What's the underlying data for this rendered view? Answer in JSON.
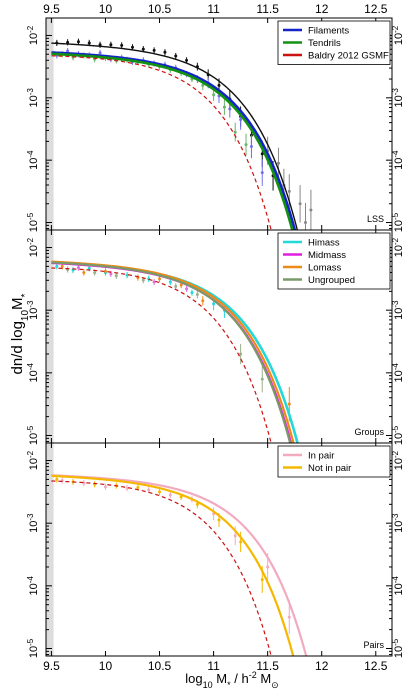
{
  "figure": {
    "ylabel": "dn/d log",
    "ylabel_sub": "10",
    "ylabel_tail": "M",
    "ylabel_star": "*",
    "xlabel_a": "log",
    "xlabel_sub": "10",
    "xlabel_b": " M",
    "xlabel_star": "*",
    "xlabel_c": " / h",
    "xlabel_sup": "-2",
    "xlabel_d": "  M",
    "xlabel_sun": "⊙"
  },
  "chart_data": [
    {
      "type": "line",
      "panel_label": "LSS",
      "xlim": [
        9.45,
        12.65
      ],
      "ylim_log10": [
        -5.12,
        -1.72
      ],
      "yscale": "log",
      "xticks": [
        9.5,
        10,
        10.5,
        11,
        11.5,
        12,
        12.5
      ],
      "xticklabels": [
        "9.5",
        "10",
        "10.5",
        "11",
        "11.5",
        "12",
        "12.5"
      ],
      "yticks_log10": [
        -5,
        -4,
        -3,
        -2
      ],
      "legend_position": "top-right",
      "shaded_x": [
        9.45,
        9.52
      ],
      "series": [
        {
          "name": "Filaments",
          "color": "#1424c8",
          "style": "solid",
          "width": 2.6,
          "phi_star_log10": -2.33,
          "m_star": 10.95,
          "alpha": -1.05
        },
        {
          "name": "Tendrils",
          "color": "#129012",
          "style": "solid",
          "width": 2.6,
          "phi_star_log10": -2.35,
          "m_star": 10.93,
          "alpha": -1.05
        },
        {
          "name": "Baldry 2012 GSMF",
          "color": "#cc1111",
          "style": "dashed",
          "width": 1.2,
          "phi_star_log10": -2.3,
          "m_star": 10.72,
          "alpha": -1.0
        },
        {
          "name": "",
          "color": "#111111",
          "style": "solid",
          "width": 1.4,
          "phi_star_log10": -2.18,
          "m_star": 10.95,
          "alpha": -1.05
        }
      ],
      "points": [
        {
          "color": "#111111",
          "pts": [
            [
              9.55,
              -2.12
            ],
            [
              9.65,
              -2.11
            ],
            [
              9.75,
              -2.1
            ],
            [
              9.85,
              -2.12
            ],
            [
              9.95,
              -2.15
            ],
            [
              10.05,
              -2.15
            ],
            [
              10.15,
              -2.16
            ],
            [
              10.25,
              -2.19
            ],
            [
              10.35,
              -2.22
            ],
            [
              10.45,
              -2.24
            ],
            [
              10.55,
              -2.27
            ],
            [
              10.65,
              -2.33
            ],
            [
              10.75,
              -2.4
            ],
            [
              10.85,
              -2.5
            ],
            [
              10.95,
              -2.63
            ],
            [
              11.05,
              -2.8
            ],
            [
              11.15,
              -3.02
            ],
            [
              11.25,
              -3.3
            ],
            [
              11.35,
              -3.6
            ],
            [
              11.45,
              -3.9
            ],
            [
              11.55,
              -4.25
            ]
          ]
        },
        {
          "color": "#7070ee",
          "pts": [
            [
              9.55,
              -2.32
            ],
            [
              9.65,
              -2.25
            ],
            [
              9.75,
              -2.3
            ],
            [
              9.85,
              -2.32
            ],
            [
              9.95,
              -2.28
            ],
            [
              10.05,
              -2.38
            ],
            [
              10.15,
              -2.36
            ],
            [
              10.25,
              -2.42
            ],
            [
              10.35,
              -2.4
            ],
            [
              10.45,
              -2.45
            ],
            [
              10.55,
              -2.47
            ],
            [
              10.65,
              -2.52
            ],
            [
              10.75,
              -2.62
            ],
            [
              10.85,
              -2.7
            ],
            [
              10.95,
              -2.76
            ],
            [
              11.05,
              -2.97
            ],
            [
              11.15,
              -3.18
            ],
            [
              11.25,
              -3.35
            ],
            [
              11.35,
              -3.78
            ],
            [
              11.45,
              -4.2
            ]
          ]
        },
        {
          "color": "#6ab46a",
          "pts": [
            [
              9.6,
              -2.3
            ],
            [
              9.7,
              -2.35
            ],
            [
              9.8,
              -2.32
            ],
            [
              9.9,
              -2.38
            ],
            [
              10.0,
              -2.36
            ],
            [
              10.1,
              -2.4
            ],
            [
              10.2,
              -2.39
            ],
            [
              10.3,
              -2.43
            ],
            [
              10.4,
              -2.46
            ],
            [
              10.5,
              -2.5
            ],
            [
              10.6,
              -2.55
            ],
            [
              10.7,
              -2.6
            ],
            [
              10.8,
              -2.7
            ],
            [
              10.9,
              -2.8
            ],
            [
              11.0,
              -2.95
            ],
            [
              11.1,
              -3.15
            ],
            [
              11.2,
              -3.55
            ],
            [
              11.3,
              -3.75
            ]
          ]
        },
        {
          "color": "#888888",
          "pts": [
            [
              11.5,
              -3.85
            ],
            [
              11.6,
              -4.05
            ],
            [
              11.65,
              -4.4
            ],
            [
              11.7,
              -4.5
            ],
            [
              11.8,
              -4.7
            ],
            [
              11.85,
              -5.0
            ],
            [
              11.9,
              -4.8
            ]
          ]
        }
      ]
    },
    {
      "type": "line",
      "panel_label": "Groups",
      "xlim": [
        9.45,
        12.65
      ],
      "ylim_log10": [
        -5.12,
        -1.72
      ],
      "yscale": "log",
      "xticks": [
        9.5,
        10,
        10.5,
        11,
        11.5,
        12,
        12.5
      ],
      "yticks_log10": [
        -5,
        -4,
        -3,
        -2
      ],
      "legend_position": "top-right",
      "shaded_x": [
        9.45,
        9.52
      ],
      "series": [
        {
          "name": "Himass",
          "color": "#22d8d8",
          "style": "solid",
          "width": 2.6,
          "phi_star_log10": -2.3,
          "m_star": 10.97,
          "alpha": -1.05
        },
        {
          "name": "Midmass",
          "color": "#e020e0",
          "style": "solid",
          "width": 2.2,
          "phi_star_log10": -2.3,
          "m_star": 10.91,
          "alpha": -1.05
        },
        {
          "name": "Lomass",
          "color": "#ee8a18",
          "style": "solid",
          "width": 2.2,
          "phi_star_log10": -2.28,
          "m_star": 10.93,
          "alpha": -1.05
        },
        {
          "name": "Ungrouped",
          "color": "#7a9a6a",
          "style": "solid",
          "width": 2.2,
          "phi_star_log10": -2.29,
          "m_star": 10.9,
          "alpha": -1.05
        },
        {
          "name": "",
          "color": "#cc1111",
          "style": "dashed",
          "width": 1.2,
          "phi_star_log10": -2.3,
          "m_star": 10.72,
          "alpha": -1.0
        }
      ],
      "points": [
        {
          "color": "#22d8d8",
          "pts": [
            [
              9.55,
              -2.3
            ],
            [
              9.7,
              -2.36
            ],
            [
              9.85,
              -2.33
            ],
            [
              10.0,
              -2.4
            ],
            [
              10.2,
              -2.44
            ],
            [
              10.4,
              -2.5
            ],
            [
              10.6,
              -2.55
            ],
            [
              10.8,
              -2.72
            ],
            [
              11.0,
              -2.9
            ],
            [
              11.1,
              -3.0
            ]
          ]
        },
        {
          "color": "#ee8a18",
          "pts": [
            [
              9.6,
              -2.3
            ],
            [
              9.8,
              -2.4
            ],
            [
              10.0,
              -2.38
            ],
            [
              10.3,
              -2.48
            ],
            [
              10.5,
              -2.5
            ],
            [
              10.7,
              -2.6
            ],
            [
              10.9,
              -2.85
            ],
            [
              11.7,
              -4.5
            ]
          ]
        },
        {
          "color": "#9ab08a",
          "pts": [
            [
              9.65,
              -2.35
            ],
            [
              9.9,
              -2.4
            ],
            [
              10.1,
              -2.45
            ],
            [
              10.35,
              -2.52
            ],
            [
              10.65,
              -2.62
            ],
            [
              10.85,
              -2.75
            ],
            [
              11.25,
              -3.7
            ],
            [
              11.45,
              -4.1
            ]
          ]
        },
        {
          "color": "#e070e0",
          "pts": [
            [
              9.75,
              -2.32
            ],
            [
              10.05,
              -2.42
            ],
            [
              10.45,
              -2.55
            ],
            [
              10.75,
              -2.66
            ]
          ]
        }
      ]
    },
    {
      "type": "line",
      "panel_label": "Pairs",
      "xlim": [
        9.45,
        12.65
      ],
      "ylim_log10": [
        -5.12,
        -1.72
      ],
      "yscale": "log",
      "xticks": [
        9.5,
        10,
        10.5,
        11,
        11.5,
        12,
        12.5
      ],
      "xticklabels": [
        "9.5",
        "10",
        "10.5",
        "11",
        "11.5",
        "12",
        "12.5"
      ],
      "yticks_log10": [
        -5,
        -4,
        -3,
        -2
      ],
      "legend_position": "top-right",
      "shaded_x": [
        9.45,
        9.52
      ],
      "series": [
        {
          "name": "In pair",
          "color": "#f2aabf",
          "style": "solid",
          "width": 2.2,
          "phi_star_log10": -2.3,
          "m_star": 11.05,
          "alpha": -1.05
        },
        {
          "name": "Not in pair",
          "color": "#f5b800",
          "style": "solid",
          "width": 2.2,
          "phi_star_log10": -2.3,
          "m_star": 10.93,
          "alpha": -1.05
        },
        {
          "name": "",
          "color": "#cc1111",
          "style": "dashed",
          "width": 1.2,
          "phi_star_log10": -2.3,
          "m_star": 10.72,
          "alpha": -1.0
        }
      ],
      "points": [
        {
          "color": "#f5b800",
          "pts": [
            [
              9.55,
              -2.3
            ],
            [
              9.7,
              -2.34
            ],
            [
              9.9,
              -2.38
            ],
            [
              10.1,
              -2.4
            ],
            [
              10.3,
              -2.43
            ],
            [
              10.5,
              -2.5
            ],
            [
              10.7,
              -2.58
            ],
            [
              10.85,
              -2.7
            ],
            [
              11.05,
              -2.95
            ],
            [
              11.25,
              -3.3
            ],
            [
              11.45,
              -3.9
            ]
          ]
        },
        {
          "color": "#f2aabf",
          "pts": [
            [
              9.6,
              -2.32
            ],
            [
              9.8,
              -2.36
            ],
            [
              10.0,
              -2.42
            ],
            [
              10.2,
              -2.44
            ],
            [
              10.4,
              -2.47
            ],
            [
              10.6,
              -2.55
            ],
            [
              10.8,
              -2.62
            ],
            [
              11.0,
              -2.85
            ],
            [
              11.2,
              -3.2
            ],
            [
              11.5,
              -3.7
            ],
            [
              11.7,
              -4.5
            ]
          ]
        }
      ]
    }
  ]
}
